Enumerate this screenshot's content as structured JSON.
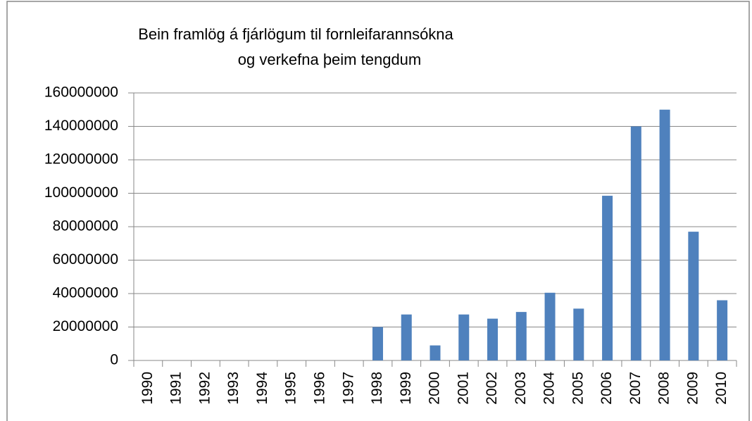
{
  "chart_data": {
    "type": "bar",
    "title": [
      "Bein framlög á fjárlögum til fornleifarannsókna",
      "og verkefna þeim tengdum"
    ],
    "categories": [
      "1990",
      "1991",
      "1992",
      "1993",
      "1994",
      "1995",
      "1996",
      "1997",
      "1998",
      "1999",
      "2000",
      "2001",
      "2002",
      "2003",
      "2004",
      "2005",
      "2006",
      "2007",
      "2008",
      "2009",
      "2010"
    ],
    "values": [
      0,
      0,
      0,
      0,
      0,
      0,
      0,
      0,
      20000000,
      27500000,
      9000000,
      27500000,
      25000000,
      29000000,
      40500000,
      31000000,
      98500000,
      140000000,
      150000000,
      77000000,
      36000000
    ],
    "color": "#4f81bd",
    "ylim": [
      0,
      160000000
    ],
    "yticks": [
      0,
      20000000,
      40000000,
      60000000,
      80000000,
      100000000,
      120000000,
      140000000,
      160000000
    ],
    "grid": true
  }
}
